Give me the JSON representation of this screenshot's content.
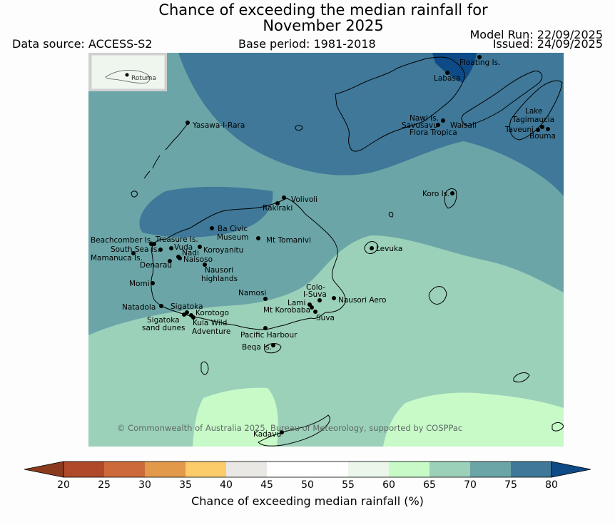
{
  "title_line1": "Chance of exceeding the median rainfall for",
  "title_line2": "November 2025",
  "data_source": "Data source: ACCESS-S2",
  "base_period": "Base period: 1981-2018",
  "model_run": "Model Run: 22/09/2025",
  "issued": "Issued: 24/09/2025",
  "copyright": "© Commonwealth of Australia 2025, Bureau of Meteorology, supported by COSPPac",
  "inset_label": "Rotuma",
  "places": {
    "floating": "Floating Is.",
    "labasa": "Labasa",
    "nawi": "Nawi Is.",
    "savusavu": "Savusavu",
    "waisali": "Waisali",
    "flora": "Flora Tropica",
    "lake1": "Lake",
    "lake2": "Tagimaucia",
    "taveuni": "Taveuni",
    "bouma": "Bouma",
    "yasawa": "Yasawa-I-Rara",
    "koro": "Koro Is.",
    "volivoli": "Volivoli",
    "rakiraki": "Rakiraki",
    "bacivic1": "Ba Civic",
    "bacivic2": "Museum",
    "beachcomber": "Beachcomber Is.",
    "treasure": "Treasure Is.",
    "southsea": "South Sea Is.",
    "vuda": "Vuda",
    "koroyanitu": "Koroyanitu",
    "mttomanivi": "Mt Tomanivi",
    "levuka": "Levuka",
    "mamanuca": "Mamanuca Is.",
    "nadi": "Nadi",
    "denarau": "Denarau",
    "naisoso": "Naisoso",
    "nausori_h1": "Nausori",
    "nausori_h2": "highlands",
    "momi": "Momi",
    "namosi": "Namosi",
    "colo1": "Colo-",
    "colo2": "I-Suva",
    "lami": "Lami",
    "nausori_aero": "Nausori Aero",
    "natadola": "Natadola",
    "sigatoka": "Sigatoka",
    "korotogo": "Korotogo",
    "mtkorobaba": "Mt Korobaba",
    "suva": "Suva",
    "sig_dunes1": "Sigatoka",
    "sig_dunes2": "sand dunes",
    "kula1": "Kula Wild",
    "kula2": "Adventure",
    "pacific": "Pacific Harbour",
    "beqa": "Beqa Is.",
    "kadavu": "Kadavu"
  },
  "colorbar": {
    "title": "Chance of exceeding median rainfall (%)",
    "ticks": [
      "20",
      "25",
      "30",
      "35",
      "40",
      "45",
      "50",
      "55",
      "60",
      "65",
      "70",
      "75",
      "80"
    ],
    "colors": [
      "#8b3a1e",
      "#b0482a",
      "#cc6a3a",
      "#e2994a",
      "#fccb6a",
      "#eae8e4",
      "#ffffff",
      "#ffffff",
      "#eaf7ea",
      "#c8fac8",
      "#9bd0b9",
      "#6ba5a7",
      "#3f7898",
      "#0e4a85"
    ]
  },
  "colors": {
    "c60": "#c8fac8",
    "c65": "#9bd0b9",
    "c70": "#6ba5a7",
    "c75": "#3f7898",
    "c80": "#0e4a85",
    "inset_bg": "#eef6ee"
  }
}
